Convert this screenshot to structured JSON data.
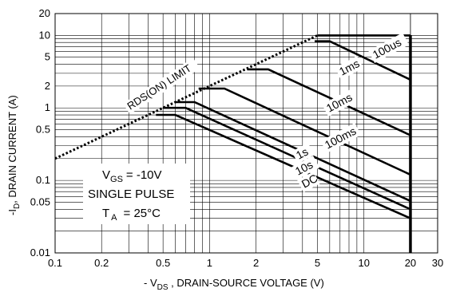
{
  "chart_data": {
    "type": "line",
    "title": "",
    "xlabel": "- V_DS , DRAIN-SOURCE VOLTAGE (V)",
    "ylabel": "-I_D, DRAIN CURRENT (A)",
    "xscale": "log",
    "yscale": "log",
    "xlim": [
      0.1,
      30
    ],
    "ylim": [
      0.01,
      20
    ],
    "grid": true,
    "x_ticks": [
      "0.1",
      "0.2",
      "0.5",
      "1",
      "2",
      "5",
      "10",
      "20",
      "30"
    ],
    "y_ticks": [
      "20",
      "10",
      "5",
      "2",
      "1",
      "0.5",
      "0.1",
      "0.05",
      "0.01"
    ],
    "limit_line": {
      "label": "RDS(ON) LIMIT",
      "points": [
        [
          0.1,
          0.2
        ],
        [
          5.0,
          10
        ]
      ]
    },
    "vertical_limit": {
      "x": 20,
      "y_range": [
        0.01,
        10
      ]
    },
    "series": [
      {
        "name": "100us",
        "points": [
          [
            5.0,
            10
          ],
          [
            20,
            10
          ]
        ]
      },
      {
        "name": "1ms",
        "points": [
          [
            4.8,
            8.3
          ],
          [
            6.0,
            8.3
          ],
          [
            20,
            2.45
          ]
        ]
      },
      {
        "name": "10ms",
        "points": [
          [
            1.75,
            3.4
          ],
          [
            2.4,
            3.4
          ],
          [
            20,
            0.42
          ]
        ]
      },
      {
        "name": "100ms",
        "points": [
          [
            0.85,
            1.85
          ],
          [
            1.25,
            1.85
          ],
          [
            20,
            0.12
          ]
        ]
      },
      {
        "name": "1s",
        "points": [
          [
            0.6,
            1.2
          ],
          [
            0.8,
            1.2
          ],
          [
            20,
            0.052
          ]
        ]
      },
      {
        "name": "10s",
        "points": [
          [
            0.5,
            1.0
          ],
          [
            0.7,
            1.0
          ],
          [
            20,
            0.04
          ]
        ]
      },
      {
        "name": "DC",
        "points": [
          [
            0.45,
            0.8
          ],
          [
            0.6,
            0.8
          ],
          [
            20,
            0.03
          ]
        ]
      }
    ],
    "conditions": {
      "vgs": {
        "symbol": "V",
        "sub": "GS",
        "value": "= -10V"
      },
      "pulse": "SINGLE PULSE",
      "ta": {
        "symbol": "T",
        "sub": "A",
        "value": "= 25°C"
      }
    }
  }
}
